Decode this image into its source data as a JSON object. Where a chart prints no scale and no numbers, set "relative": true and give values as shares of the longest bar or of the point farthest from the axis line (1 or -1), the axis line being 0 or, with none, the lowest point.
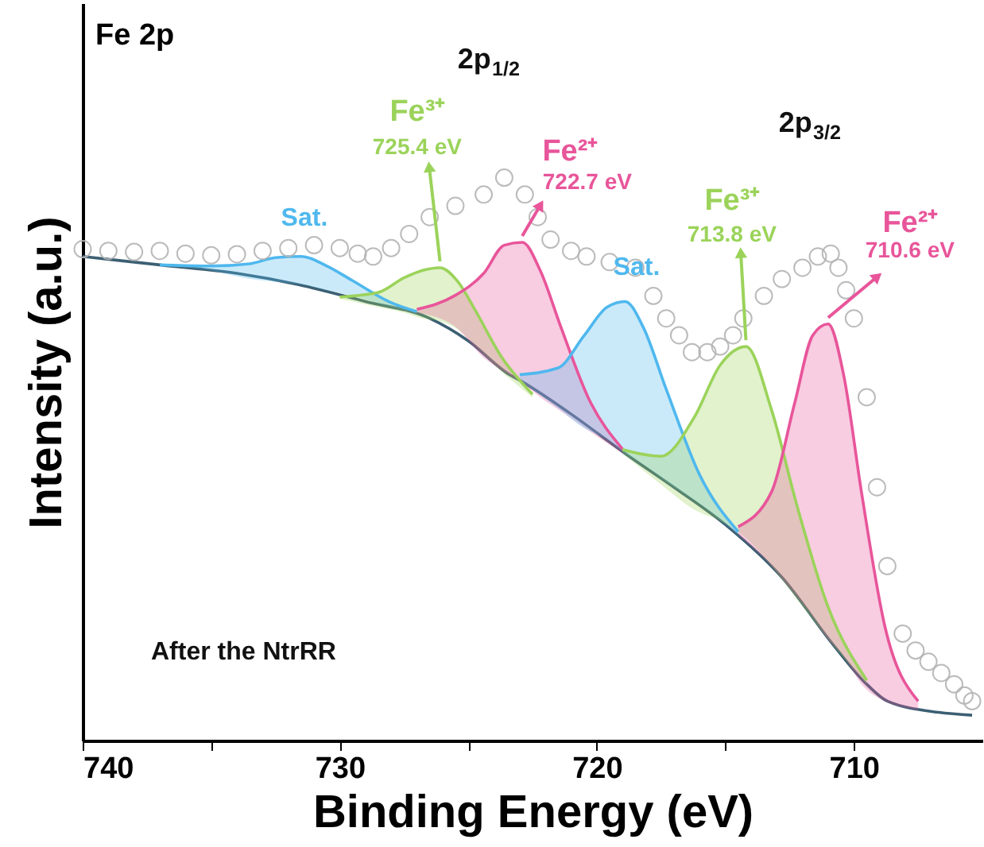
{
  "chart_data": {
    "type": "line",
    "relative": true,
    "title": "Fe 2p",
    "xlabel": "Binding Energy  (eV)",
    "ylabel": "Intensity (a.u.)",
    "xlim": [
      740,
      705
    ],
    "xticks": [
      740,
      {
        "value": 735,
        "label": null
      },
      730,
      {
        "value": 725,
        "label": null
      },
      720,
      {
        "value": 715,
        "label": null
      },
      710
    ],
    "grid": false,
    "series": [
      {
        "color": "#3c5f73",
        "x": [
          740,
          737,
          734,
          731.6,
          729,
          726.5,
          725,
          723.4,
          723,
          721,
          718.9,
          717,
          714.9,
          712.8,
          710.8,
          709.5,
          708.7,
          706.7,
          705.4
        ],
        "values": [
          0.86,
          0.845,
          0.83,
          0.81,
          0.78,
          0.75,
          0.71,
          0.65,
          0.64,
          0.58,
          0.51,
          0.45,
          0.38,
          0.29,
          0.17,
          0.1,
          0.07,
          0.05,
          0.045
        ]
      },
      {
        "name": "Sat.",
        "color": "#4fb8ee",
        "x": [
          737,
          735,
          733.5,
          732.5,
          731.5,
          730.5,
          729.5,
          728,
          727
        ],
        "values": [
          0.845,
          0.843,
          0.847,
          0.858,
          0.86,
          0.843,
          0.817,
          0.778,
          0.762
        ],
        "lower": [
          0.845,
          0.835,
          0.82,
          0.815,
          0.81,
          0.8,
          0.79,
          0.77,
          0.76
        ],
        "upper": [
          0.845,
          0.843,
          0.847,
          0.858,
          0.86,
          0.843,
          0.817,
          0.778,
          0.762
        ]
      },
      {
        "name": "Fe³⁺",
        "color": "#9bd35a",
        "x": [
          730,
          728.5,
          727.5,
          726.8,
          726.1,
          725.4,
          724.7,
          723.7,
          722.5
        ],
        "values": [
          0.788,
          0.796,
          0.822,
          0.835,
          0.84,
          0.815,
          0.762,
          0.681,
          0.615
        ],
        "lower": [
          0.785,
          0.77,
          0.76,
          0.75,
          0.745,
          0.73,
          0.7,
          0.655,
          0.61
        ],
        "upper": [
          0.788,
          0.796,
          0.822,
          0.835,
          0.84,
          0.815,
          0.762,
          0.681,
          0.615
        ]
      },
      {
        "name": "Fe²⁺",
        "color": "#e8559a",
        "x": [
          727,
          725.5,
          724.4,
          723.6,
          722.9,
          722.2,
          721.4,
          720.3,
          719
        ],
        "values": [
          0.766,
          0.791,
          0.83,
          0.88,
          0.885,
          0.835,
          0.735,
          0.606,
          0.518
        ],
        "lower": [
          0.76,
          0.735,
          0.68,
          0.655,
          0.635,
          0.61,
          0.585,
          0.55,
          0.51
        ],
        "upper": [
          0.766,
          0.791,
          0.83,
          0.88,
          0.885,
          0.835,
          0.735,
          0.606,
          0.518
        ]
      },
      {
        "name": "Sat.",
        "color": "#4fb8ee",
        "x": [
          723,
          721.5,
          720.5,
          719.6,
          718.9,
          718.2,
          717.3,
          716,
          714.5
        ],
        "values": [
          0.65,
          0.662,
          0.719,
          0.77,
          0.78,
          0.735,
          0.624,
          0.472,
          0.371
        ],
        "lower": [
          0.64,
          0.59,
          0.555,
          0.535,
          0.51,
          0.49,
          0.46,
          0.42,
          0.365
        ],
        "upper": [
          0.65,
          0.662,
          0.719,
          0.77,
          0.78,
          0.735,
          0.624,
          0.472,
          0.371
        ]
      },
      {
        "name": "Fe³⁺",
        "color": "#9bd35a",
        "x": [
          719,
          717.5,
          716.2,
          715.2,
          714.2,
          713.2,
          712.2,
          711,
          709.5
        ],
        "values": [
          0.517,
          0.505,
          0.575,
          0.667,
          0.7,
          0.587,
          0.415,
          0.237,
          0.107
        ],
        "lower": [
          0.51,
          0.455,
          0.41,
          0.39,
          0.36,
          0.31,
          0.25,
          0.18,
          0.1
        ],
        "upper": [
          0.517,
          0.505,
          0.575,
          0.667,
          0.7,
          0.587,
          0.415,
          0.237,
          0.107
        ]
      },
      {
        "name": "Fe²⁺",
        "color": "#e8559a",
        "x": [
          714.5,
          713.2,
          712.3,
          711.6,
          711,
          710.4,
          709.7,
          708.8,
          707.5
        ],
        "values": [
          0.38,
          0.442,
          0.6,
          0.72,
          0.74,
          0.65,
          0.44,
          0.204,
          0.07
        ],
        "lower": [
          0.365,
          0.31,
          0.26,
          0.22,
          0.18,
          0.15,
          0.1,
          0.07,
          0.055
        ],
        "upper": [
          0.38,
          0.442,
          0.6,
          0.72,
          0.74,
          0.65,
          0.44,
          0.204,
          0.07
        ]
      },
      {
        "type": "scatter",
        "marker": "circle",
        "color": "#b4b4b4",
        "x": [
          740,
          739,
          738,
          737,
          736,
          735,
          734,
          733,
          732,
          731,
          730,
          729.3,
          728.7,
          728,
          727.3,
          726.5,
          725.5,
          724.4,
          723.6,
          722.8,
          722.3,
          721.8,
          721,
          720.4,
          719.5,
          718.5,
          717.8,
          717.3,
          716.8,
          716.3,
          715.7,
          715.2,
          714.7,
          714.3,
          713.5,
          712.8,
          712,
          711.4,
          710.9,
          710.6,
          710.3,
          710,
          709.5,
          709.1,
          708.7,
          708.1,
          707.6,
          707.1,
          706.6,
          706.1,
          705.7,
          705.4
        ],
        "values": [
          0.873,
          0.87,
          0.868,
          0.87,
          0.865,
          0.862,
          0.864,
          0.87,
          0.875,
          0.88,
          0.875,
          0.865,
          0.86,
          0.875,
          0.9,
          0.93,
          0.95,
          0.97,
          1.0,
          0.97,
          0.93,
          0.89,
          0.87,
          0.86,
          0.85,
          0.84,
          0.79,
          0.75,
          0.72,
          0.69,
          0.69,
          0.7,
          0.72,
          0.75,
          0.79,
          0.82,
          0.84,
          0.86,
          0.865,
          0.84,
          0.8,
          0.75,
          0.61,
          0.45,
          0.31,
          0.19,
          0.16,
          0.14,
          0.12,
          0.1,
          0.08,
          0.07
        ]
      }
    ],
    "annotations": [
      "725.4 eV",
      "722.7 eV",
      "713.8 eV",
      "710.6 eV",
      "2p$_{1/2}$",
      "2p$_{3/2}$",
      "After the NtrRR"
    ]
  }
}
